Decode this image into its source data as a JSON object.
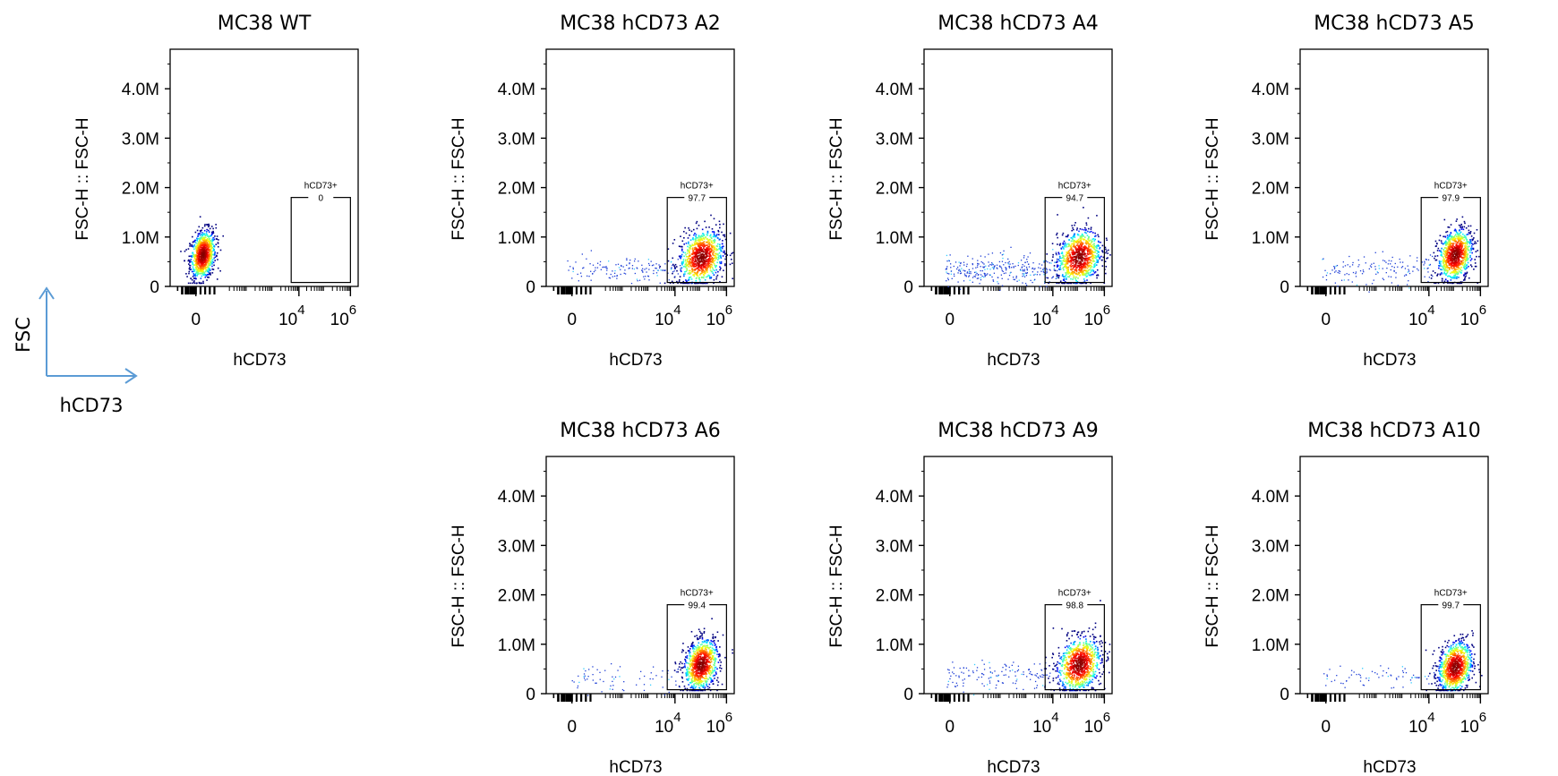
{
  "chart_data": [
    {
      "type": "scatter",
      "title": "MC38 WT",
      "xlabel": "hCD73",
      "ylabel": "FSC-H :: FSC-H",
      "x_ticks": [
        "0",
        "10",
        "10"
      ],
      "x_tick_exponents": [
        "",
        "4",
        "6"
      ],
      "y_ticks": [
        "0",
        "1.0M",
        "2.0M",
        "3.0M",
        "4.0M"
      ],
      "ylim": [
        0,
        4800000
      ],
      "gate": {
        "name": "hCD73+",
        "percent": "0"
      },
      "population": {
        "center_x": "0",
        "center_y": 650000,
        "spread": "narrow"
      },
      "tail": "none"
    },
    {
      "type": "scatter",
      "title": "MC38 hCD73 A2",
      "xlabel": "hCD73",
      "ylabel": "FSC-H :: FSC-H",
      "x_ticks": [
        "0",
        "10",
        "10"
      ],
      "x_tick_exponents": [
        "",
        "4",
        "6"
      ],
      "y_ticks": [
        "0",
        "1.0M",
        "2.0M",
        "3.0M",
        "4.0M"
      ],
      "ylim": [
        0,
        4800000
      ],
      "gate": {
        "name": "hCD73+",
        "percent": "97.7"
      },
      "population": {
        "center_x": "10^5",
        "center_y": 600000,
        "spread": "wide"
      },
      "tail": "medium"
    },
    {
      "type": "scatter",
      "title": "MC38 hCD73 A4",
      "xlabel": "hCD73",
      "ylabel": "FSC-H :: FSC-H",
      "x_ticks": [
        "0",
        "10",
        "10"
      ],
      "x_tick_exponents": [
        "",
        "4",
        "6"
      ],
      "y_ticks": [
        "0",
        "1.0M",
        "2.0M",
        "3.0M",
        "4.0M"
      ],
      "ylim": [
        0,
        4800000
      ],
      "gate": {
        "name": "hCD73+",
        "percent": "94.7"
      },
      "population": {
        "center_x": "10^5",
        "center_y": 600000,
        "spread": "wide"
      },
      "tail": "heavy"
    },
    {
      "type": "scatter",
      "title": "MC38 hCD73 A5",
      "xlabel": "hCD73",
      "ylabel": "FSC-H :: FSC-H",
      "x_ticks": [
        "0",
        "10",
        "10"
      ],
      "x_tick_exponents": [
        "",
        "4",
        "6"
      ],
      "y_ticks": [
        "0",
        "1.0M",
        "2.0M",
        "3.0M",
        "4.0M"
      ],
      "ylim": [
        0,
        4800000
      ],
      "gate": {
        "name": "hCD73+",
        "percent": "97.9"
      },
      "population": {
        "center_x": "10^5",
        "center_y": 650000,
        "spread": "medium"
      },
      "tail": "medium"
    },
    {
      "type": "scatter",
      "title": "MC38 hCD73 A6",
      "xlabel": "hCD73",
      "ylabel": "FSC-H :: FSC-H",
      "x_ticks": [
        "0",
        "10",
        "10"
      ],
      "x_tick_exponents": [
        "",
        "4",
        "6"
      ],
      "y_ticks": [
        "0",
        "1.0M",
        "2.0M",
        "3.0M",
        "4.0M"
      ],
      "ylim": [
        0,
        4800000
      ],
      "gate": {
        "name": "hCD73+",
        "percent": "99.4"
      },
      "population": {
        "center_x": "10^5",
        "center_y": 600000,
        "spread": "medium"
      },
      "tail": "light"
    },
    {
      "type": "scatter",
      "title": "MC38 hCD73 A9",
      "xlabel": "hCD73",
      "ylabel": "FSC-H :: FSC-H",
      "x_ticks": [
        "0",
        "10",
        "10"
      ],
      "x_tick_exponents": [
        "",
        "4",
        "6"
      ],
      "y_ticks": [
        "0",
        "1.0M",
        "2.0M",
        "3.0M",
        "4.0M"
      ],
      "ylim": [
        0,
        4800000
      ],
      "gate": {
        "name": "hCD73+",
        "percent": "98.8"
      },
      "population": {
        "center_x": "10^5",
        "center_y": 600000,
        "spread": "wide"
      },
      "tail": "medium"
    },
    {
      "type": "scatter",
      "title": "MC38 hCD73 A10",
      "xlabel": "hCD73",
      "ylabel": "FSC-H :: FSC-H",
      "x_ticks": [
        "0",
        "10",
        "10"
      ],
      "x_tick_exponents": [
        "",
        "4",
        "6"
      ],
      "y_ticks": [
        "0",
        "1.0M",
        "2.0M",
        "3.0M",
        "4.0M"
      ],
      "ylim": [
        0,
        4800000
      ],
      "gate": {
        "name": "hCD73+",
        "percent": "99.7"
      },
      "population": {
        "center_x": "10^5",
        "center_y": 550000,
        "spread": "medium"
      },
      "tail": "light"
    }
  ],
  "axis_legend": {
    "y_label": "FSC",
    "x_label": "hCD73",
    "color": "#5b9bd5"
  }
}
